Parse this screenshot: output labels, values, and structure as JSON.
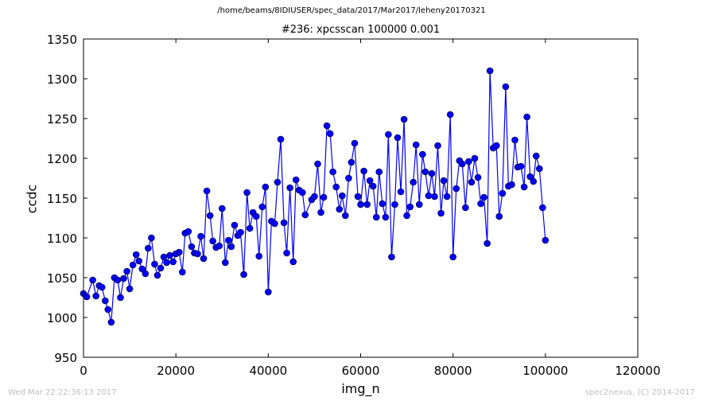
{
  "supertitle": "/home/beams/8IDIUSER/spec_data/2017/Mar2017/leheny20170321",
  "footer": {
    "timestamp": "Wed Mar 22 22:36:13 2017",
    "credit": "spec2nexus, (C) 2014-2017"
  },
  "colors": {
    "series": "#0000ff",
    "marker": "#0000ff",
    "axes": "#000000",
    "background": "#ffffff",
    "footer": "#bfbfbf"
  },
  "chart_data": {
    "type": "line",
    "title": "#236: xpcsscan 100000 0.001",
    "xlabel": "img_n",
    "ylabel": "ccdc",
    "xlim": [
      0,
      120000
    ],
    "ylim": [
      950,
      1350
    ],
    "xticks": [
      0,
      20000,
      40000,
      60000,
      80000,
      100000,
      120000
    ],
    "yticks": [
      950,
      1000,
      1050,
      1100,
      1150,
      1200,
      1250,
      1300,
      1350
    ],
    "xtick_labels": [
      "0",
      "20000",
      "40000",
      "60000",
      "80000",
      "100000",
      "120000"
    ],
    "ytick_labels": [
      "950",
      "1000",
      "1050",
      "1100",
      "1150",
      "1200",
      "1250",
      "1300",
      "1350"
    ],
    "grid": false,
    "legend": "none",
    "markers": true,
    "series": [
      {
        "x": [
          0,
          700,
          2000,
          2700,
          3400,
          4000,
          4700,
          5300,
          6000,
          6700,
          7400,
          8000,
          8700,
          9400,
          10000,
          10700,
          11400,
          12000,
          12700,
          13400,
          14000,
          14700,
          15400,
          16000,
          16700,
          17400,
          18000,
          18700,
          19400,
          20000,
          20700,
          21400,
          22000,
          22700,
          23400,
          24000,
          24700,
          25400,
          26000,
          26700,
          27400,
          28000,
          28700,
          29400,
          30000,
          30700,
          31400,
          32000,
          32700,
          33400,
          34000,
          34700,
          35400,
          36000,
          36700,
          37400,
          38000,
          38700,
          39400,
          40000,
          40700,
          41400,
          42000,
          42700,
          43400,
          44000,
          44700,
          45400,
          46000,
          46700,
          47400,
          48000,
          49400,
          50000,
          50700,
          51400,
          52000,
          52700,
          53400,
          54000,
          54700,
          55400,
          56000,
          56700,
          57400,
          58000,
          58700,
          59400,
          60000,
          60700,
          61400,
          62000,
          62700,
          63400,
          64000,
          64700,
          65400,
          66000,
          66700,
          67400,
          68000,
          68700,
          69400,
          70000,
          70700,
          71400,
          72000,
          72700,
          73400,
          74000,
          74700,
          75400,
          76000,
          76700,
          77400,
          78000,
          78700,
          79400,
          80000,
          80700,
          81400,
          82000,
          82700,
          83400,
          84000,
          84700,
          85400,
          86000,
          86700,
          87400,
          88000,
          88700,
          89400,
          90000,
          90700,
          91400,
          92000,
          92700,
          93400,
          94000,
          94700,
          95400,
          96000,
          96700,
          97400,
          98000,
          98700,
          99400,
          100000
        ],
        "y": [
          1030,
          1026,
          1047,
          1027,
          1040,
          1038,
          1021,
          1010,
          994,
          1050,
          1047,
          1025,
          1049,
          1058,
          1036,
          1066,
          1079,
          1071,
          1061,
          1055,
          1087,
          1100,
          1067,
          1053,
          1062,
          1076,
          1069,
          1078,
          1070,
          1080,
          1082,
          1057,
          1106,
          1108,
          1089,
          1081,
          1080,
          1102,
          1074,
          1159,
          1128,
          1096,
          1088,
          1090,
          1137,
          1069,
          1097,
          1089,
          1116,
          1103,
          1107,
          1054,
          1157,
          1112,
          1132,
          1127,
          1077,
          1139,
          1164,
          1032,
          1121,
          1118,
          1170,
          1224,
          1119,
          1081,
          1163,
          1070,
          1173,
          1160,
          1157,
          1129,
          1148,
          1152,
          1193,
          1132,
          1151,
          1241,
          1231,
          1183,
          1164,
          1136,
          1153,
          1128,
          1175,
          1195,
          1219,
          1152,
          1142,
          1184,
          1142,
          1172,
          1165,
          1126,
          1183,
          1143,
          1126,
          1230,
          1076,
          1142,
          1226,
          1158,
          1249,
          1128,
          1139,
          1170,
          1217,
          1142,
          1205,
          1183,
          1153,
          1181,
          1152,
          1216,
          1131,
          1172,
          1152,
          1255,
          1076,
          1162,
          1197,
          1193,
          1138,
          1196,
          1170,
          1200,
          1176,
          1143,
          1151,
          1093,
          1310,
          1213,
          1216,
          1127,
          1156,
          1290,
          1165,
          1167,
          1223,
          1189,
          1190,
          1164,
          1252,
          1177,
          1171,
          1203,
          1187,
          1138,
          1097
        ]
      }
    ]
  }
}
